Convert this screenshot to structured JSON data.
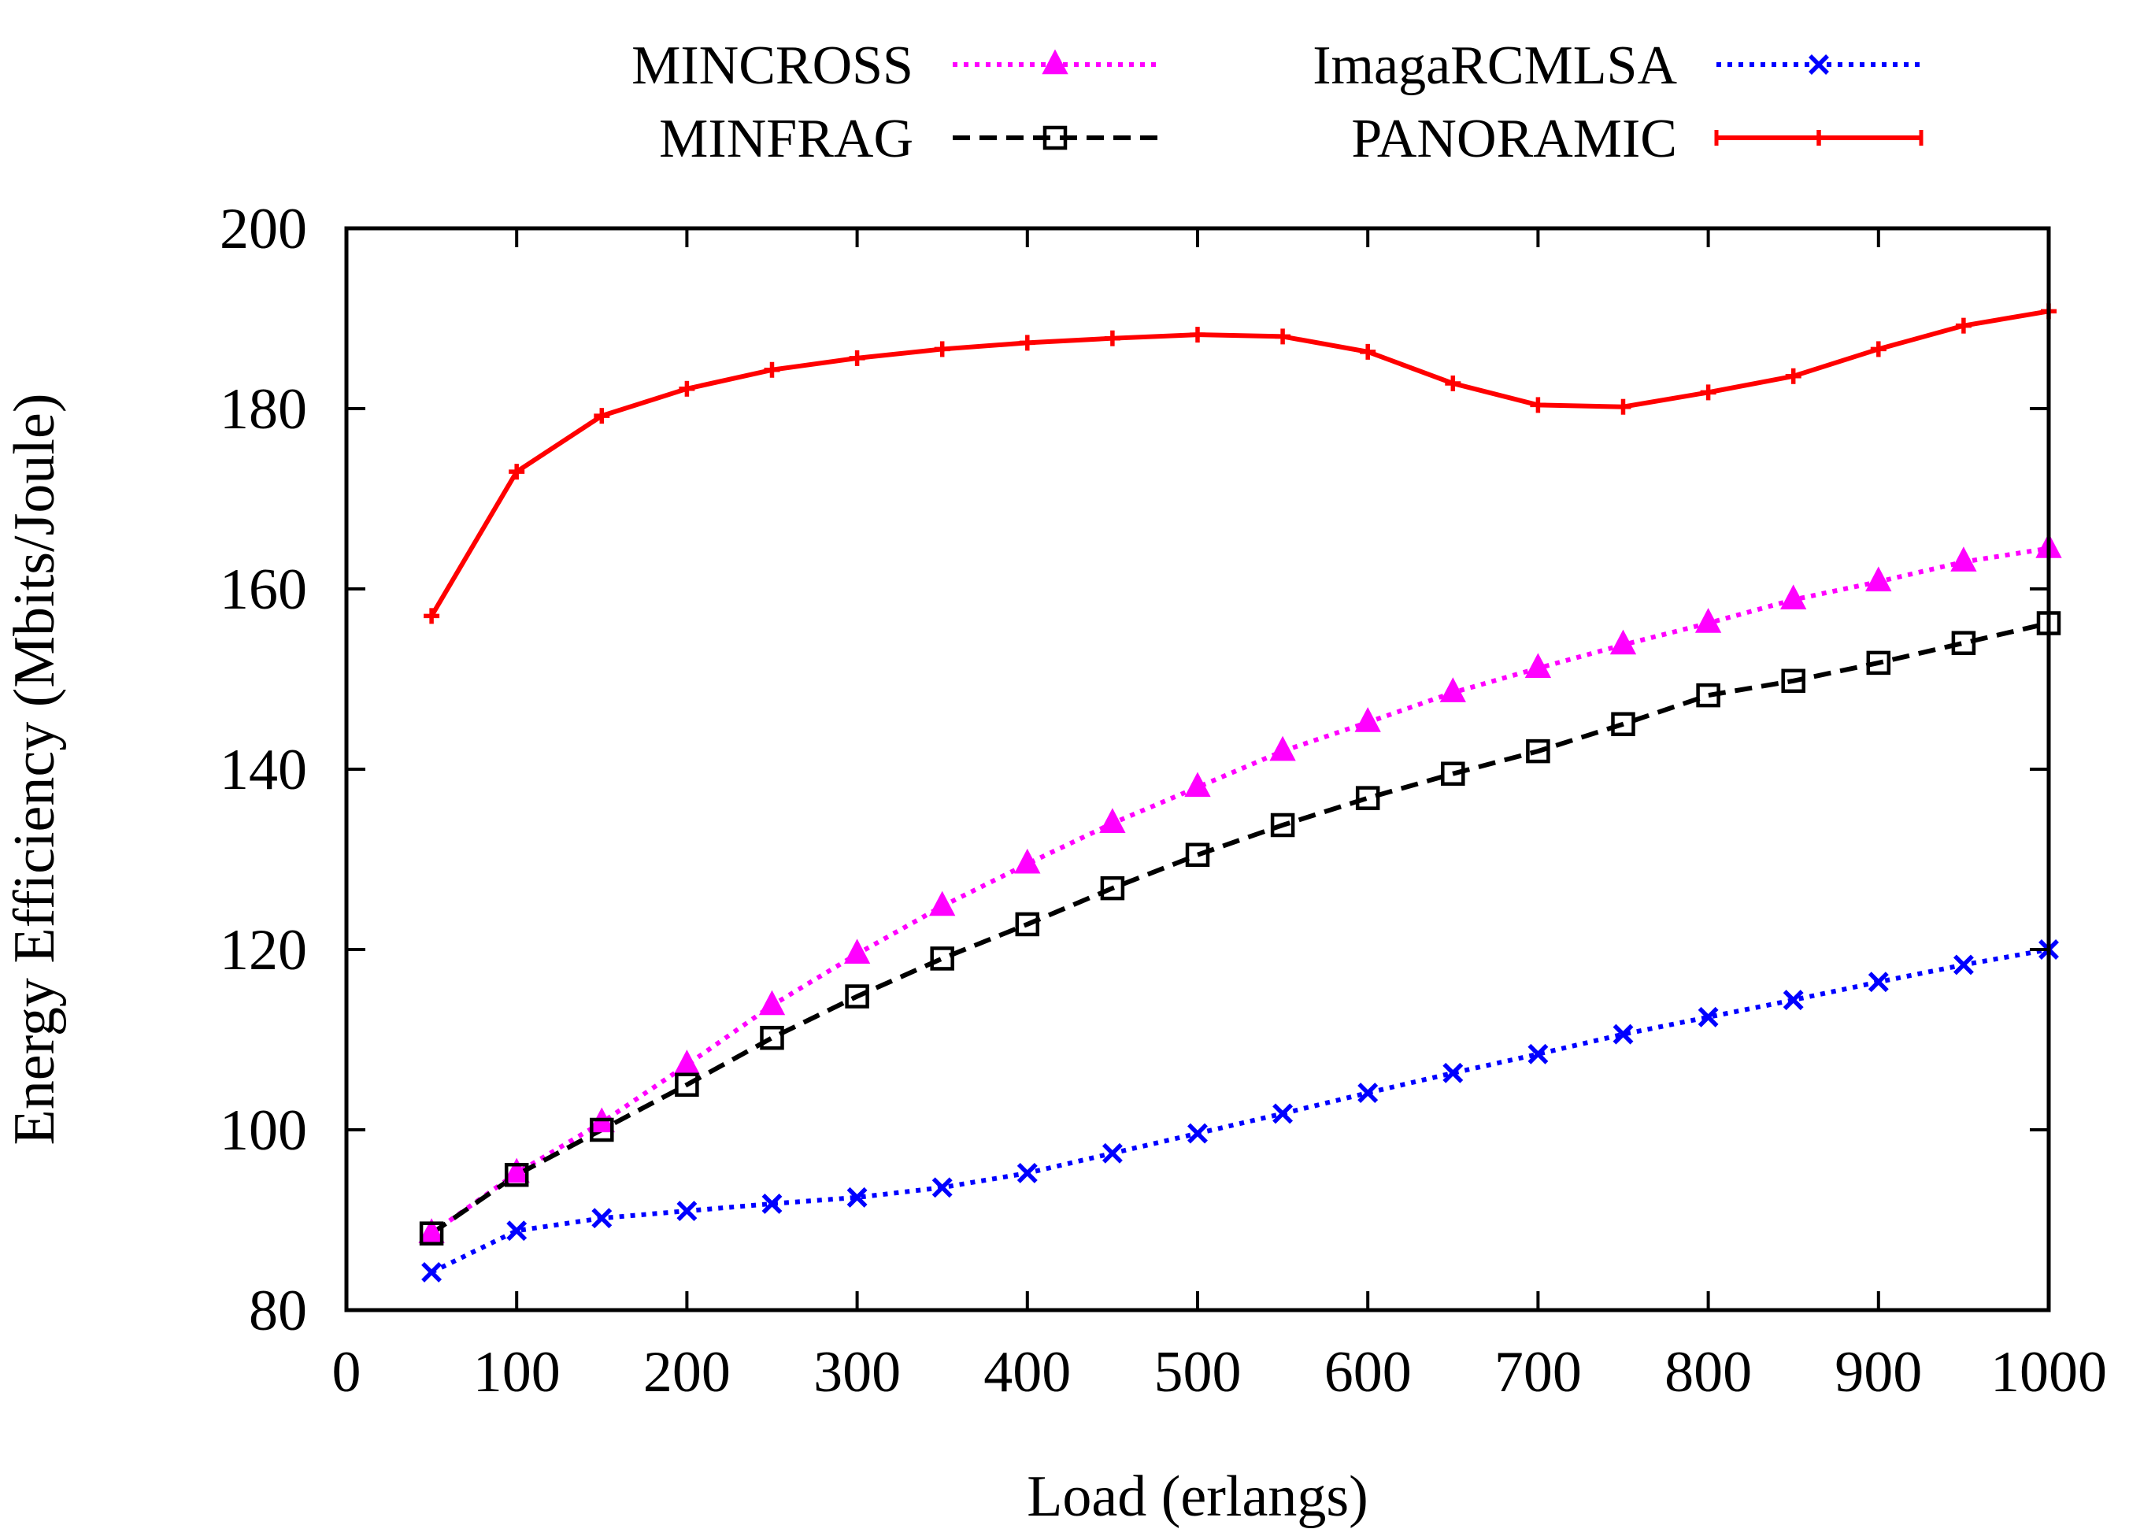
{
  "chart_data": {
    "type": "line",
    "xlabel": "Load (erlangs)",
    "ylabel": "Energy Efficiency (Mbits/Joule)",
    "xlim": [
      0,
      1000
    ],
    "ylim": [
      80,
      200
    ],
    "xticks": [
      0,
      100,
      200,
      300,
      400,
      500,
      600,
      700,
      800,
      900,
      1000
    ],
    "yticks": [
      80,
      100,
      120,
      140,
      160,
      180,
      200
    ],
    "grid": false,
    "legend_position": "top, outside plot area, two columns",
    "x": [
      50,
      100,
      150,
      200,
      250,
      300,
      350,
      400,
      450,
      500,
      550,
      600,
      650,
      700,
      750,
      800,
      850,
      900,
      950,
      1000
    ],
    "series": [
      {
        "name": "MINCROSS",
        "color": "#ff00ff",
        "marker": "triangle",
        "line": "dotted",
        "values": [
          88.5,
          95.2,
          100.8,
          107.2,
          113.8,
          119.5,
          124.8,
          129.5,
          134.0,
          138.0,
          142.0,
          145.2,
          148.5,
          151.2,
          153.8,
          156.2,
          158.8,
          160.8,
          163.0,
          164.5
        ]
      },
      {
        "name": "MINFRAG",
        "color": "#000000",
        "marker": "square",
        "line": "dashed",
        "values": [
          88.5,
          95.0,
          100.0,
          105.0,
          110.2,
          114.8,
          119.0,
          122.8,
          126.8,
          130.5,
          133.8,
          136.8,
          139.5,
          142.0,
          145.0,
          148.2,
          149.8,
          151.8,
          154.0,
          156.2
        ]
      },
      {
        "name": "ImagaRCMLSA",
        "color": "#0000ff",
        "marker": "x",
        "line": "dotted",
        "values": [
          84.2,
          88.8,
          90.2,
          91.0,
          91.8,
          92.5,
          93.6,
          95.2,
          97.4,
          99.6,
          101.8,
          104.1,
          106.3,
          108.4,
          110.6,
          112.5,
          114.4,
          116.4,
          118.3,
          120.0
        ]
      },
      {
        "name": "PANORAMIC",
        "color": "#ff0000",
        "marker": "plus",
        "line": "solid",
        "values": [
          157.0,
          173.0,
          179.2,
          182.2,
          184.3,
          185.6,
          186.6,
          187.3,
          187.8,
          188.2,
          188.0,
          186.3,
          182.8,
          180.4,
          180.2,
          181.8,
          183.6,
          186.6,
          189.2,
          190.8
        ]
      }
    ]
  }
}
